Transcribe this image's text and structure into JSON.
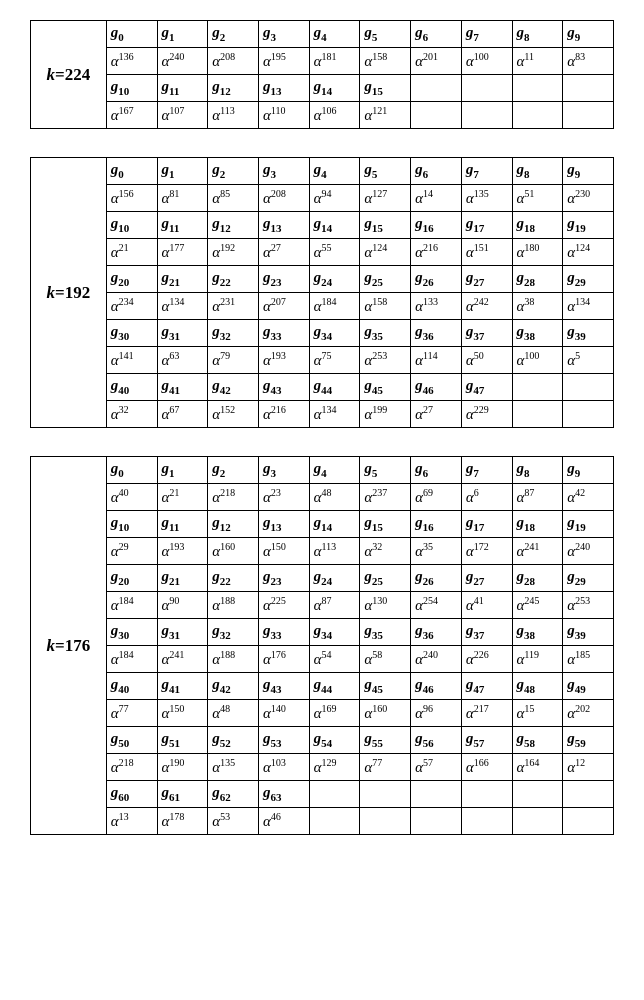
{
  "blocks": [
    {
      "k": 224,
      "cols": 10,
      "headerRows": [
        [
          0,
          1,
          2,
          3,
          4,
          5,
          6,
          7,
          8,
          9
        ],
        [
          10,
          11,
          12,
          13,
          14,
          15,
          null,
          null,
          null,
          null
        ]
      ],
      "valueRows": [
        [
          136,
          240,
          208,
          195,
          181,
          158,
          201,
          100,
          11,
          83
        ],
        [
          167,
          107,
          113,
          110,
          106,
          121,
          null,
          null,
          null,
          null
        ]
      ]
    },
    {
      "k": 192,
      "cols": 10,
      "headerRows": [
        [
          0,
          1,
          2,
          3,
          4,
          5,
          6,
          7,
          8,
          9
        ],
        [
          10,
          11,
          12,
          13,
          14,
          15,
          16,
          17,
          18,
          19
        ],
        [
          20,
          21,
          22,
          23,
          24,
          25,
          26,
          27,
          28,
          29
        ],
        [
          30,
          31,
          32,
          33,
          34,
          35,
          36,
          37,
          38,
          39
        ],
        [
          40,
          41,
          42,
          43,
          44,
          45,
          46,
          47,
          null,
          null
        ]
      ],
      "valueRows": [
        [
          156,
          81,
          85,
          208,
          94,
          127,
          14,
          135,
          51,
          230
        ],
        [
          21,
          177,
          192,
          27,
          55,
          124,
          216,
          151,
          180,
          124
        ],
        [
          234,
          134,
          231,
          207,
          184,
          158,
          133,
          242,
          38,
          134
        ],
        [
          141,
          63,
          79,
          193,
          75,
          253,
          114,
          50,
          100,
          5
        ],
        [
          32,
          67,
          152,
          216,
          134,
          199,
          27,
          229,
          null,
          null
        ]
      ]
    },
    {
      "k": 176,
      "cols": 10,
      "headerRows": [
        [
          0,
          1,
          2,
          3,
          4,
          5,
          6,
          7,
          8,
          9
        ],
        [
          10,
          11,
          12,
          13,
          14,
          15,
          16,
          17,
          18,
          19
        ],
        [
          20,
          21,
          22,
          23,
          24,
          25,
          26,
          27,
          28,
          29
        ],
        [
          30,
          31,
          32,
          33,
          34,
          35,
          36,
          37,
          38,
          39
        ],
        [
          40,
          41,
          42,
          43,
          44,
          45,
          46,
          47,
          48,
          49
        ],
        [
          50,
          51,
          52,
          53,
          54,
          55,
          56,
          57,
          58,
          59
        ],
        [
          60,
          61,
          62,
          63,
          null,
          null,
          null,
          null,
          null,
          null
        ]
      ],
      "valueRows": [
        [
          40,
          21,
          218,
          23,
          48,
          237,
          69,
          6,
          87,
          42
        ],
        [
          29,
          193,
          160,
          150,
          113,
          32,
          35,
          172,
          241,
          240
        ],
        [
          184,
          90,
          188,
          225,
          87,
          130,
          254,
          41,
          245,
          253
        ],
        [
          184,
          241,
          188,
          176,
          54,
          58,
          240,
          226,
          119,
          185
        ],
        [
          77,
          150,
          48,
          140,
          169,
          160,
          96,
          217,
          15,
          202
        ],
        [
          218,
          190,
          135,
          103,
          129,
          77,
          57,
          166,
          164,
          12
        ],
        [
          13,
          178,
          53,
          46,
          null,
          null,
          null,
          null,
          null,
          null
        ]
      ]
    }
  ]
}
